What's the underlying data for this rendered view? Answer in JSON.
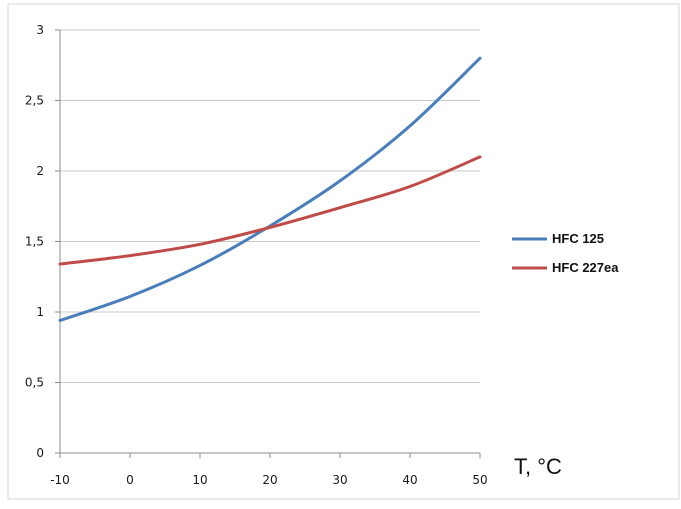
{
  "chart_data": {
    "type": "line",
    "title": "",
    "xlabel": "T, °C",
    "ylabel": "",
    "x": [
      -10,
      0,
      10,
      20,
      30,
      40,
      50
    ],
    "xticks": [
      "-10",
      "0",
      "10",
      "20",
      "30",
      "40",
      "50"
    ],
    "yticks": [
      "0",
      "0,5",
      "1",
      "1,5",
      "2",
      "2,5",
      "3"
    ],
    "xlim": [
      -10,
      50
    ],
    "ylim": [
      0,
      3
    ],
    "grid": true,
    "legend": "right",
    "series": [
      {
        "name": "HFC 125",
        "color": "#4a7ebb",
        "values": [
          0.94,
          1.11,
          1.33,
          1.61,
          1.93,
          2.32,
          2.8
        ]
      },
      {
        "name": "HFC 227ea",
        "color": "#be4b48",
        "values": [
          1.34,
          1.4,
          1.48,
          1.6,
          1.74,
          1.89,
          2.1
        ]
      }
    ]
  }
}
